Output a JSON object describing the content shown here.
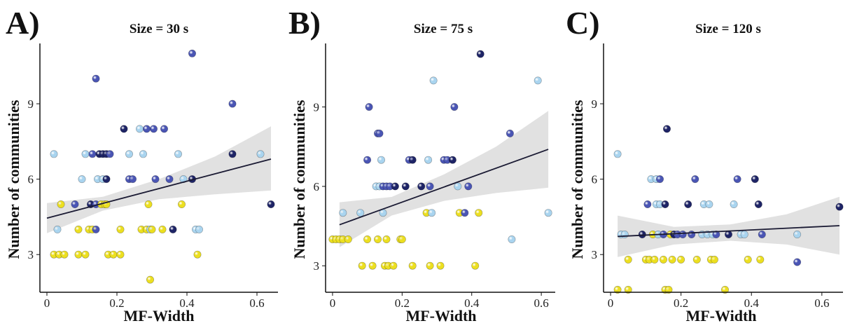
{
  "chart_data": [
    {
      "type": "scatter",
      "panel_label": "A)",
      "title": "Size = 30 s",
      "xlabel": "MF-Width",
      "ylabel": "Number of communities",
      "xlim": [
        -0.02,
        0.66
      ],
      "ylim": [
        1.5,
        11.4
      ],
      "xticks": [
        "0",
        "0.2",
        "0.4",
        "0.6"
      ],
      "yticks": [
        "3",
        "6",
        "9"
      ],
      "fit_line": {
        "x0": 0.0,
        "y0": 4.45,
        "x1": 0.64,
        "y1": 6.8
      },
      "ci_band": {
        "x": [
          0.0,
          0.16,
          0.32,
          0.48,
          0.64
        ],
        "lower": [
          3.85,
          4.75,
          5.2,
          5.4,
          5.55
        ],
        "upper": [
          5.05,
          5.3,
          6.0,
          6.9,
          8.1
        ]
      },
      "points": [
        {
          "x": 0.02,
          "y": 7,
          "c": "#a9d4ef"
        },
        {
          "x": 0.03,
          "y": 4,
          "c": "#a9d4ef"
        },
        {
          "x": 0.04,
          "y": 5,
          "c": "#ecdf20"
        },
        {
          "x": 0.02,
          "y": 3,
          "c": "#ecdf20"
        },
        {
          "x": 0.035,
          "y": 3,
          "c": "#ecdf20"
        },
        {
          "x": 0.05,
          "y": 3,
          "c": "#ecdf20"
        },
        {
          "x": 0.08,
          "y": 5,
          "c": "#4a55b4"
        },
        {
          "x": 0.09,
          "y": 4,
          "c": "#ecdf20"
        },
        {
          "x": 0.09,
          "y": 3,
          "c": "#ecdf20"
        },
        {
          "x": 0.1,
          "y": 6,
          "c": "#a9d4ef"
        },
        {
          "x": 0.11,
          "y": 7,
          "c": "#a9d4ef"
        },
        {
          "x": 0.11,
          "y": 3,
          "c": "#ecdf20"
        },
        {
          "x": 0.12,
          "y": 4,
          "c": "#ecdf20"
        },
        {
          "x": 0.125,
          "y": 5,
          "c": "#1e2466"
        },
        {
          "x": 0.13,
          "y": 7,
          "c": "#4a55b4"
        },
        {
          "x": 0.13,
          "y": 4,
          "c": "#ecdf20"
        },
        {
          "x": 0.14,
          "y": 10,
          "c": "#4a55b4"
        },
        {
          "x": 0.14,
          "y": 5,
          "c": "#4a55b4"
        },
        {
          "x": 0.14,
          "y": 4,
          "c": "#4a55b4"
        },
        {
          "x": 0.145,
          "y": 6,
          "c": "#a9d4ef"
        },
        {
          "x": 0.15,
          "y": 7,
          "c": "#1e2466"
        },
        {
          "x": 0.155,
          "y": 5,
          "c": "#ecdf20"
        },
        {
          "x": 0.16,
          "y": 7,
          "c": "#1e2466"
        },
        {
          "x": 0.16,
          "y": 6,
          "c": "#a9d4ef"
        },
        {
          "x": 0.165,
          "y": 5,
          "c": "#ecdf20"
        },
        {
          "x": 0.17,
          "y": 7,
          "c": "#1e2466"
        },
        {
          "x": 0.17,
          "y": 6,
          "c": "#1e2466"
        },
        {
          "x": 0.17,
          "y": 5,
          "c": "#ecdf20"
        },
        {
          "x": 0.175,
          "y": 3,
          "c": "#ecdf20"
        },
        {
          "x": 0.18,
          "y": 7,
          "c": "#4a55b4"
        },
        {
          "x": 0.19,
          "y": 3,
          "c": "#ecdf20"
        },
        {
          "x": 0.21,
          "y": 3,
          "c": "#ecdf20"
        },
        {
          "x": 0.21,
          "y": 4,
          "c": "#ecdf20"
        },
        {
          "x": 0.22,
          "y": 8,
          "c": "#1e2466"
        },
        {
          "x": 0.235,
          "y": 7,
          "c": "#a9d4ef"
        },
        {
          "x": 0.235,
          "y": 6,
          "c": "#4a55b4"
        },
        {
          "x": 0.245,
          "y": 6,
          "c": "#4a55b4"
        },
        {
          "x": 0.265,
          "y": 8,
          "c": "#a9d4ef"
        },
        {
          "x": 0.27,
          "y": 4,
          "c": "#ecdf20"
        },
        {
          "x": 0.275,
          "y": 7,
          "c": "#a9d4ef"
        },
        {
          "x": 0.285,
          "y": 4,
          "c": "#ecdf20"
        },
        {
          "x": 0.285,
          "y": 8,
          "c": "#4a55b4"
        },
        {
          "x": 0.29,
          "y": 5,
          "c": "#ecdf20"
        },
        {
          "x": 0.295,
          "y": 4,
          "c": "#a9d4ef"
        },
        {
          "x": 0.3,
          "y": 4,
          "c": "#ecdf20"
        },
        {
          "x": 0.295,
          "y": 2,
          "c": "#ecdf20"
        },
        {
          "x": 0.305,
          "y": 8,
          "c": "#4a55b4"
        },
        {
          "x": 0.31,
          "y": 6,
          "c": "#4a55b4"
        },
        {
          "x": 0.33,
          "y": 4,
          "c": "#ecdf20"
        },
        {
          "x": 0.335,
          "y": 8,
          "c": "#4a55b4"
        },
        {
          "x": 0.35,
          "y": 6,
          "c": "#4a55b4"
        },
        {
          "x": 0.36,
          "y": 4,
          "c": "#1e2466"
        },
        {
          "x": 0.375,
          "y": 7,
          "c": "#a9d4ef"
        },
        {
          "x": 0.385,
          "y": 5,
          "c": "#ecdf20"
        },
        {
          "x": 0.39,
          "y": 6,
          "c": "#a9d4ef"
        },
        {
          "x": 0.415,
          "y": 11,
          "c": "#4a55b4"
        },
        {
          "x": 0.415,
          "y": 6,
          "c": "#1e2466"
        },
        {
          "x": 0.425,
          "y": 4,
          "c": "#a9d4ef"
        },
        {
          "x": 0.43,
          "y": 3,
          "c": "#ecdf20"
        },
        {
          "x": 0.435,
          "y": 4,
          "c": "#a9d4ef"
        },
        {
          "x": 0.53,
          "y": 9,
          "c": "#4a55b4"
        },
        {
          "x": 0.53,
          "y": 7,
          "c": "#1e2466"
        },
        {
          "x": 0.61,
          "y": 7,
          "c": "#a9d4ef"
        },
        {
          "x": 0.64,
          "y": 5,
          "c": "#1e2466"
        }
      ]
    },
    {
      "type": "scatter",
      "panel_label": "B)",
      "title": "Size = 75 s",
      "xlabel": "MF-Width",
      "ylabel": "Number of communities",
      "xlim": [
        -0.02,
        0.64
      ],
      "ylim": [
        2.0,
        11.4
      ],
      "xticks": [
        "0",
        "0.2",
        "0.4",
        "0.6"
      ],
      "yticks": [
        "3",
        "6",
        "9"
      ],
      "fit_line": {
        "x0": 0.02,
        "y0": 4.55,
        "x1": 0.62,
        "y1": 7.4
      },
      "ci_band": {
        "x": [
          0.02,
          0.17,
          0.32,
          0.47,
          0.62
        ],
        "lower": [
          3.7,
          4.9,
          5.45,
          5.75,
          5.95
        ],
        "upper": [
          5.4,
          5.6,
          6.45,
          7.5,
          8.85
        ]
      },
      "points": [
        {
          "x": 0.0,
          "y": 4,
          "c": "#ecdf20"
        },
        {
          "x": 0.01,
          "y": 4,
          "c": "#ecdf20"
        },
        {
          "x": 0.02,
          "y": 4,
          "c": "#ecdf20"
        },
        {
          "x": 0.03,
          "y": 4,
          "c": "#ecdf20"
        },
        {
          "x": 0.03,
          "y": 5,
          "c": "#a9d4ef"
        },
        {
          "x": 0.045,
          "y": 4,
          "c": "#ecdf20"
        },
        {
          "x": 0.08,
          "y": 5,
          "c": "#a9d4ef"
        },
        {
          "x": 0.085,
          "y": 3,
          "c": "#ecdf20"
        },
        {
          "x": 0.1,
          "y": 4,
          "c": "#ecdf20"
        },
        {
          "x": 0.1,
          "y": 7,
          "c": "#4a55b4"
        },
        {
          "x": 0.105,
          "y": 9,
          "c": "#4a55b4"
        },
        {
          "x": 0.115,
          "y": 3,
          "c": "#ecdf20"
        },
        {
          "x": 0.125,
          "y": 6,
          "c": "#a9d4ef"
        },
        {
          "x": 0.13,
          "y": 8,
          "c": "#4a55b4"
        },
        {
          "x": 0.135,
          "y": 8,
          "c": "#4a55b4"
        },
        {
          "x": 0.135,
          "y": 6,
          "c": "#a9d4ef"
        },
        {
          "x": 0.13,
          "y": 4,
          "c": "#ecdf20"
        },
        {
          "x": 0.14,
          "y": 7,
          "c": "#a9d4ef"
        },
        {
          "x": 0.145,
          "y": 6,
          "c": "#4a55b4"
        },
        {
          "x": 0.145,
          "y": 5,
          "c": "#a9d4ef"
        },
        {
          "x": 0.15,
          "y": 3,
          "c": "#ecdf20"
        },
        {
          "x": 0.155,
          "y": 6,
          "c": "#4a55b4"
        },
        {
          "x": 0.155,
          "y": 4,
          "c": "#ecdf20"
        },
        {
          "x": 0.16,
          "y": 3,
          "c": "#ecdf20"
        },
        {
          "x": 0.165,
          "y": 6,
          "c": "#4a55b4"
        },
        {
          "x": 0.175,
          "y": 3,
          "c": "#ecdf20"
        },
        {
          "x": 0.18,
          "y": 6,
          "c": "#1e2466"
        },
        {
          "x": 0.195,
          "y": 4,
          "c": "#ecdf20"
        },
        {
          "x": 0.2,
          "y": 4,
          "c": "#ecdf20"
        },
        {
          "x": 0.21,
          "y": 6,
          "c": "#1e2466"
        },
        {
          "x": 0.22,
          "y": 7,
          "c": "#4a55b4"
        },
        {
          "x": 0.23,
          "y": 7,
          "c": "#1e2466"
        },
        {
          "x": 0.23,
          "y": 3,
          "c": "#ecdf20"
        },
        {
          "x": 0.255,
          "y": 6,
          "c": "#1e2466"
        },
        {
          "x": 0.27,
          "y": 5,
          "c": "#ecdf20"
        },
        {
          "x": 0.275,
          "y": 7,
          "c": "#a9d4ef"
        },
        {
          "x": 0.28,
          "y": 6,
          "c": "#4a55b4"
        },
        {
          "x": 0.28,
          "y": 3,
          "c": "#ecdf20"
        },
        {
          "x": 0.285,
          "y": 5,
          "c": "#a9d4ef"
        },
        {
          "x": 0.29,
          "y": 10,
          "c": "#a9d4ef"
        },
        {
          "x": 0.31,
          "y": 3,
          "c": "#ecdf20"
        },
        {
          "x": 0.32,
          "y": 7,
          "c": "#4a55b4"
        },
        {
          "x": 0.33,
          "y": 7,
          "c": "#4a55b4"
        },
        {
          "x": 0.345,
          "y": 7,
          "c": "#1e2466"
        },
        {
          "x": 0.35,
          "y": 9,
          "c": "#4a55b4"
        },
        {
          "x": 0.36,
          "y": 6,
          "c": "#a9d4ef"
        },
        {
          "x": 0.365,
          "y": 5,
          "c": "#ecdf20"
        },
        {
          "x": 0.38,
          "y": 5,
          "c": "#4a55b4"
        },
        {
          "x": 0.39,
          "y": 6,
          "c": "#4a55b4"
        },
        {
          "x": 0.41,
          "y": 3,
          "c": "#ecdf20"
        },
        {
          "x": 0.42,
          "y": 5,
          "c": "#ecdf20"
        },
        {
          "x": 0.425,
          "y": 11,
          "c": "#1e2466"
        },
        {
          "x": 0.51,
          "y": 8,
          "c": "#4a55b4"
        },
        {
          "x": 0.515,
          "y": 4,
          "c": "#a9d4ef"
        },
        {
          "x": 0.59,
          "y": 10,
          "c": "#a9d4ef"
        },
        {
          "x": 0.62,
          "y": 5,
          "c": "#a9d4ef"
        }
      ]
    },
    {
      "type": "scatter",
      "panel_label": "C)",
      "title": "Size = 120 s",
      "xlabel": "MF-Width",
      "ylabel": "Number of communities",
      "xlim": [
        -0.02,
        0.66
      ],
      "ylim": [
        1.5,
        11.4
      ],
      "xticks": [
        "0",
        "0.2",
        "0.4",
        "0.6"
      ],
      "yticks": [
        "3",
        "6",
        "9"
      ],
      "fit_line": {
        "x0": 0.02,
        "y0": 3.72,
        "x1": 0.65,
        "y1": 4.15
      },
      "ci_band": {
        "x": [
          0.02,
          0.18,
          0.34,
          0.5,
          0.65
        ],
        "lower": [
          2.9,
          3.4,
          3.55,
          3.4,
          3.0
        ],
        "upper": [
          4.55,
          4.1,
          4.2,
          4.6,
          5.3
        ]
      },
      "points": [
        {
          "x": 0.02,
          "y": 7,
          "c": "#a9d4ef"
        },
        {
          "x": 0.02,
          "y": 1.6,
          "c": "#ecdf20"
        },
        {
          "x": 0.03,
          "y": 3.8,
          "c": "#a9d4ef"
        },
        {
          "x": 0.04,
          "y": 3.8,
          "c": "#a9d4ef"
        },
        {
          "x": 0.05,
          "y": 2.8,
          "c": "#ecdf20"
        },
        {
          "x": 0.05,
          "y": 1.6,
          "c": "#ecdf20"
        },
        {
          "x": 0.09,
          "y": 3.8,
          "c": "#1e2466"
        },
        {
          "x": 0.1,
          "y": 2.8,
          "c": "#ecdf20"
        },
        {
          "x": 0.105,
          "y": 5,
          "c": "#4a55b4"
        },
        {
          "x": 0.11,
          "y": 2.8,
          "c": "#ecdf20"
        },
        {
          "x": 0.115,
          "y": 6,
          "c": "#a9d4ef"
        },
        {
          "x": 0.12,
          "y": 3.8,
          "c": "#ecdf20"
        },
        {
          "x": 0.125,
          "y": 2.8,
          "c": "#ecdf20"
        },
        {
          "x": 0.13,
          "y": 6,
          "c": "#a9d4ef"
        },
        {
          "x": 0.13,
          "y": 5,
          "c": "#a9d4ef"
        },
        {
          "x": 0.135,
          "y": 3.8,
          "c": "#a9d4ef"
        },
        {
          "x": 0.14,
          "y": 6,
          "c": "#4a55b4"
        },
        {
          "x": 0.14,
          "y": 5,
          "c": "#a9d4ef"
        },
        {
          "x": 0.15,
          "y": 3.8,
          "c": "#4a55b4"
        },
        {
          "x": 0.15,
          "y": 2.8,
          "c": "#ecdf20"
        },
        {
          "x": 0.155,
          "y": 5,
          "c": "#1e2466"
        },
        {
          "x": 0.155,
          "y": 1.6,
          "c": "#ecdf20"
        },
        {
          "x": 0.16,
          "y": 8,
          "c": "#1e2466"
        },
        {
          "x": 0.165,
          "y": 1.6,
          "c": "#ecdf20"
        },
        {
          "x": 0.17,
          "y": 3.8,
          "c": "#ecdf20"
        },
        {
          "x": 0.175,
          "y": 2.8,
          "c": "#ecdf20"
        },
        {
          "x": 0.18,
          "y": 3.8,
          "c": "#1e2466"
        },
        {
          "x": 0.19,
          "y": 3.8,
          "c": "#4a55b4"
        },
        {
          "x": 0.2,
          "y": 2.8,
          "c": "#ecdf20"
        },
        {
          "x": 0.205,
          "y": 3.8,
          "c": "#4a55b4"
        },
        {
          "x": 0.22,
          "y": 5,
          "c": "#1e2466"
        },
        {
          "x": 0.23,
          "y": 3.8,
          "c": "#4a55b4"
        },
        {
          "x": 0.24,
          "y": 6,
          "c": "#4a55b4"
        },
        {
          "x": 0.245,
          "y": 2.8,
          "c": "#ecdf20"
        },
        {
          "x": 0.26,
          "y": 3.8,
          "c": "#a9d4ef"
        },
        {
          "x": 0.265,
          "y": 5,
          "c": "#a9d4ef"
        },
        {
          "x": 0.275,
          "y": 3.8,
          "c": "#a9d4ef"
        },
        {
          "x": 0.28,
          "y": 5,
          "c": "#a9d4ef"
        },
        {
          "x": 0.285,
          "y": 2.8,
          "c": "#ecdf20"
        },
        {
          "x": 0.29,
          "y": 3.8,
          "c": "#a9d4ef"
        },
        {
          "x": 0.295,
          "y": 2.8,
          "c": "#ecdf20"
        },
        {
          "x": 0.3,
          "y": 3.8,
          "c": "#4a55b4"
        },
        {
          "x": 0.325,
          "y": 1.6,
          "c": "#ecdf20"
        },
        {
          "x": 0.335,
          "y": 3.8,
          "c": "#1e2466"
        },
        {
          "x": 0.35,
          "y": 5,
          "c": "#a9d4ef"
        },
        {
          "x": 0.36,
          "y": 6,
          "c": "#4a55b4"
        },
        {
          "x": 0.37,
          "y": 3.8,
          "c": "#a9d4ef"
        },
        {
          "x": 0.38,
          "y": 3.8,
          "c": "#a9d4ef"
        },
        {
          "x": 0.39,
          "y": 2.8,
          "c": "#ecdf20"
        },
        {
          "x": 0.41,
          "y": 6,
          "c": "#1e2466"
        },
        {
          "x": 0.42,
          "y": 5,
          "c": "#1e2466"
        },
        {
          "x": 0.425,
          "y": 2.8,
          "c": "#ecdf20"
        },
        {
          "x": 0.43,
          "y": 3.8,
          "c": "#4a55b4"
        },
        {
          "x": 0.53,
          "y": 3.8,
          "c": "#a9d4ef"
        },
        {
          "x": 0.53,
          "y": 2.7,
          "c": "#4a55b4"
        },
        {
          "x": 0.65,
          "y": 4.9,
          "c": "#1e2466"
        }
      ]
    }
  ]
}
